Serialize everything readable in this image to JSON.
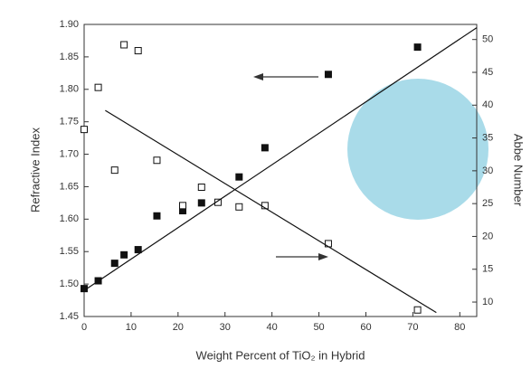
{
  "chart_data": {
    "type": "scatter",
    "x_label": "Weight Percent of TiO₂ in Hybrid",
    "y_label": "Refractive Index",
    "y2_label": "Abbe Number",
    "xlim": [
      0,
      83.6
    ],
    "xticks": [
      0,
      10,
      20,
      30,
      40,
      50,
      60,
      70,
      80
    ],
    "ylim": [
      1.45,
      1.9
    ],
    "yticks": [
      1.45,
      {
        "value": 1.5,
        "label": "1.50"
      },
      1.55,
      {
        "value": 1.6,
        "label": "1.60"
      },
      1.65,
      {
        "value": 1.7,
        "label": "1.70"
      },
      1.75,
      {
        "value": 1.8,
        "label": "1.80"
      },
      1.85,
      {
        "value": 1.9,
        "label": "1.90"
      }
    ],
    "y2lim": [
      7.8,
      52.3
    ],
    "y2ticks": [
      10,
      15,
      20,
      25,
      30,
      35,
      40,
      45,
      50
    ],
    "series": [
      {
        "marker": "filled-square",
        "color": "#111111",
        "x": [
          0,
          3,
          6.5,
          8.5,
          11.5,
          15.5,
          21,
          25,
          33,
          38.5,
          52,
          71
        ],
        "values": [
          1.493,
          1.505,
          1.532,
          1.545,
          1.553,
          1.605,
          1.613,
          1.625,
          1.665,
          1.71,
          1.823,
          1.865
        ]
      },
      {
        "marker": "open-square",
        "color": "#111111",
        "axis": "y2",
        "x": [
          0,
          3,
          6.5,
          8.5,
          11.5,
          15.5,
          21,
          25,
          28.5,
          33,
          38.5,
          52,
          71
        ],
        "values": [
          36.3,
          42.7,
          30.1,
          49.2,
          48.3,
          31.6,
          24.7,
          27.5,
          25.2,
          24.5,
          24.7,
          18.9,
          8.8
        ]
      },
      {
        "marker": "line",
        "color": "#111111",
        "x": [
          0,
          83.6
        ],
        "values": [
          1.49,
          1.895
        ]
      },
      {
        "marker": "line",
        "color": "#111111",
        "axis": "y2",
        "x": [
          4.5,
          75
        ],
        "values": [
          39.2,
          8.4
        ]
      }
    ]
  }
}
